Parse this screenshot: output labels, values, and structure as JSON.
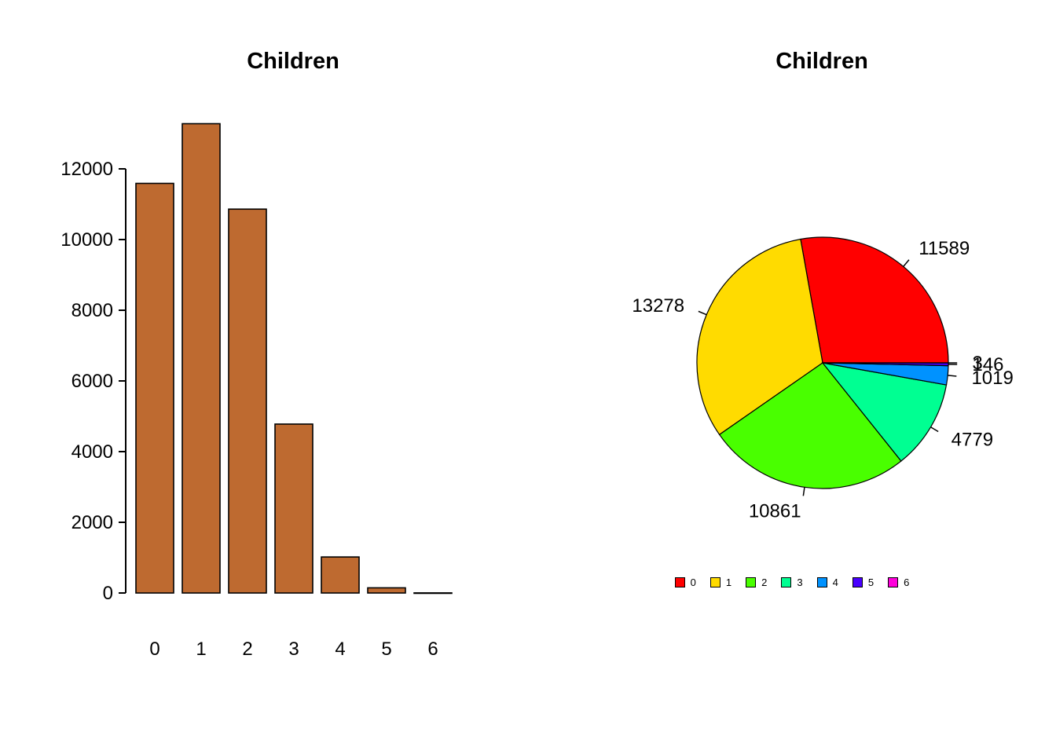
{
  "page": {
    "background": "#ffffff"
  },
  "chart_data": [
    {
      "type": "bar",
      "title": "Children",
      "categories": [
        "0",
        "1",
        "2",
        "3",
        "4",
        "5",
        "6"
      ],
      "values": [
        11589,
        13278,
        10861,
        4779,
        1019,
        146,
        3
      ],
      "bar_color": "#BE6A30",
      "bar_border": "#000000",
      "xlabel": "",
      "ylabel": "",
      "ylim": [
        0,
        12000
      ],
      "yticks": [
        0,
        2000,
        4000,
        6000,
        8000,
        10000,
        12000
      ],
      "ytick_labels": [
        "0",
        "2000",
        "4000",
        "6000",
        "8000",
        "10000",
        "12000"
      ],
      "grid": false,
      "legend_position": "none"
    },
    {
      "type": "pie",
      "title": "Children",
      "categories": [
        "0",
        "1",
        "2",
        "3",
        "4",
        "5",
        "6"
      ],
      "values": [
        11589,
        13278,
        10861,
        4779,
        1019,
        146,
        3
      ],
      "labels": [
        "11589",
        "13278",
        "10861",
        "4779",
        "1019",
        "146",
        "3"
      ],
      "colors": [
        "#FF0000",
        "#FFDB00",
        "#49FF00",
        "#00FF92",
        "#0092FF",
        "#4900FF",
        "#FF00DB"
      ],
      "start_angle_deg": 0,
      "direction": "counterclockwise",
      "legend": {
        "position": "bottom",
        "labels": [
          "0",
          "1",
          "2",
          "3",
          "4",
          "5",
          "6"
        ]
      }
    }
  ]
}
